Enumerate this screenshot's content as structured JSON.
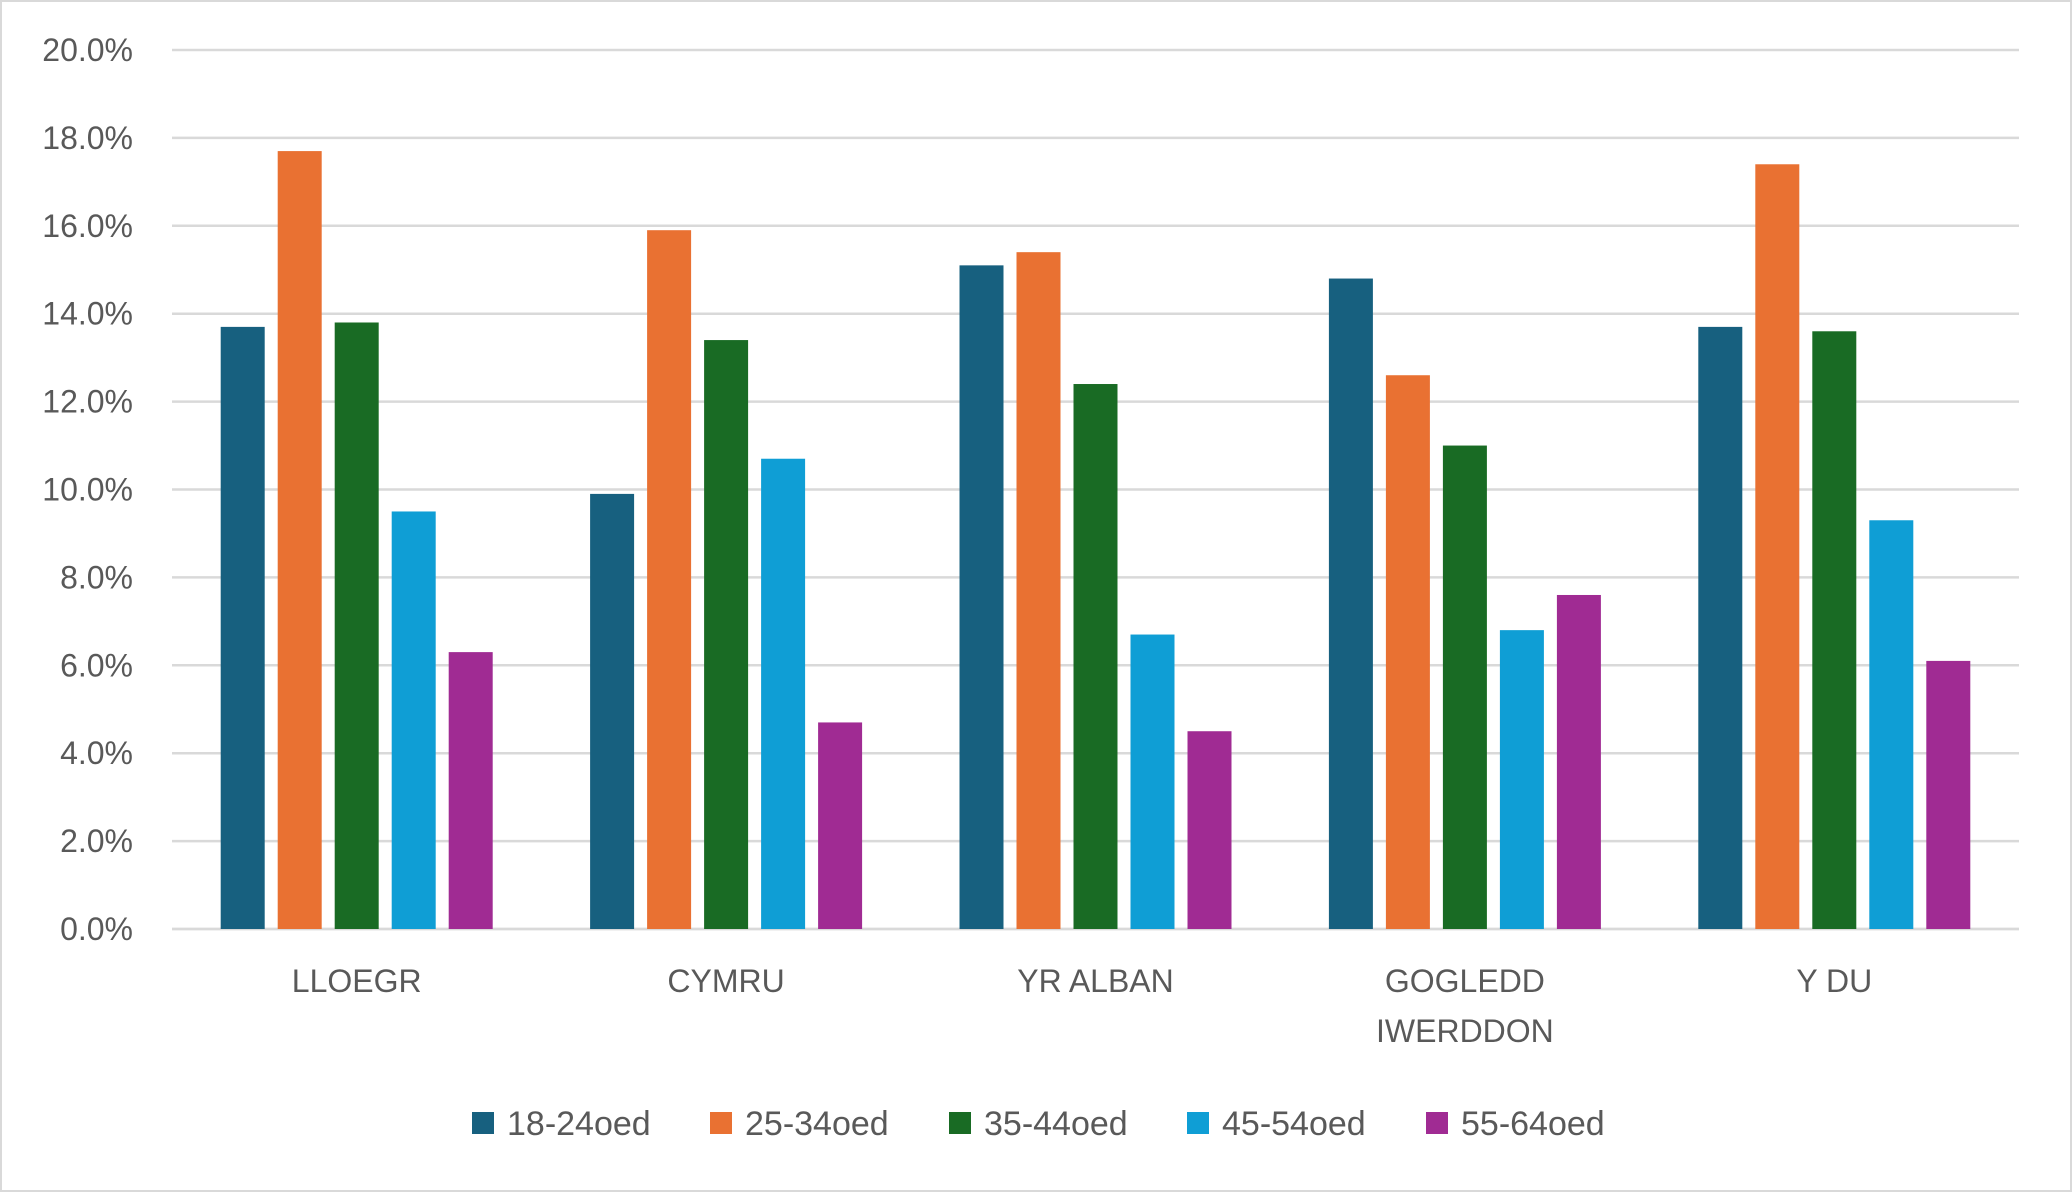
{
  "chart_data": {
    "type": "bar",
    "title": "",
    "xlabel": "",
    "ylabel": "",
    "ylim": [
      0,
      20
    ],
    "ytick_step": 2,
    "ytick_labels": [
      "0.0%",
      "2.0%",
      "4.0%",
      "6.0%",
      "8.0%",
      "10.0%",
      "12.0%",
      "14.0%",
      "16.0%",
      "18.0%",
      "20.0%"
    ],
    "grid": true,
    "legend_position": "bottom",
    "categories": [
      [
        "LLOEGR"
      ],
      [
        "CYMRU"
      ],
      [
        "YR ALBAN"
      ],
      [
        "GOGLEDD",
        "IWERDDON"
      ],
      [
        "Y DU"
      ]
    ],
    "series": [
      {
        "name": "18-24oed",
        "color": "#17607f",
        "values": [
          13.7,
          9.9,
          15.1,
          14.8,
          13.7
        ]
      },
      {
        "name": "25-34oed",
        "color": "#e97132",
        "values": [
          17.7,
          15.9,
          15.4,
          12.6,
          17.4
        ]
      },
      {
        "name": "35-44oed",
        "color": "#196b24",
        "values": [
          13.8,
          13.4,
          12.4,
          11.0,
          13.6
        ]
      },
      {
        "name": "45-54oed",
        "color": "#0f9ed5",
        "values": [
          9.5,
          10.7,
          6.7,
          6.8,
          9.3
        ]
      },
      {
        "name": "55-64oed",
        "color": "#a02b93",
        "values": [
          6.3,
          4.7,
          4.5,
          7.6,
          6.1
        ]
      }
    ]
  }
}
